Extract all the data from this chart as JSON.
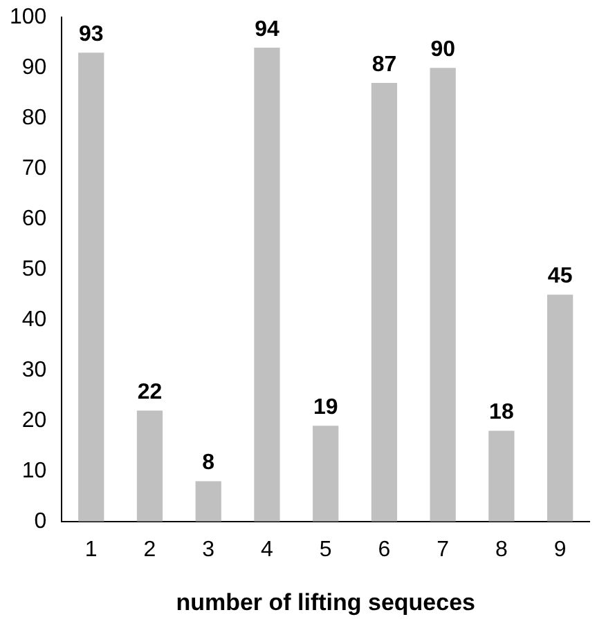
{
  "chart_data": {
    "type": "bar",
    "xlabel": "number of lifting sequeces",
    "categories": [
      "1",
      "2",
      "3",
      "4",
      "5",
      "6",
      "7",
      "8",
      "9"
    ],
    "values": [
      93,
      22,
      8,
      94,
      19,
      87,
      90,
      18,
      45
    ],
    "color": "#c0c0c0",
    "ylim": [
      0,
      100
    ],
    "yticks": [
      0,
      10,
      20,
      30,
      40,
      50,
      60,
      70,
      80,
      90,
      100
    ],
    "grid": false,
    "legend": false,
    "data_labels": true
  }
}
